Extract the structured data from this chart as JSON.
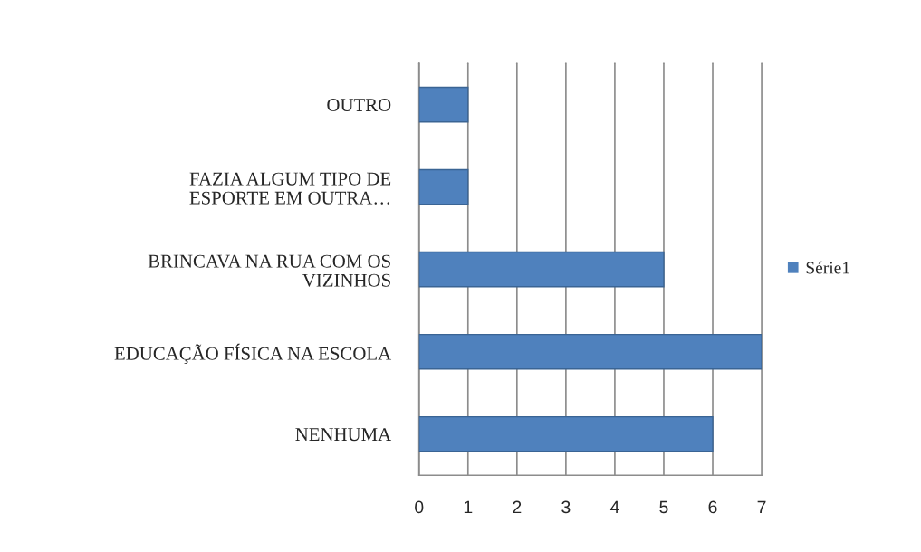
{
  "chart_data": {
    "type": "bar",
    "orientation": "horizontal",
    "categories": [
      "OUTRO",
      "FAZIA ALGUM TIPO DE\nESPORTE EM OUTRA…",
      "BRINCAVA NA RUA COM OS\nVIZINHOS",
      "EDUCAÇÃO FÍSICA NA ESCOLA",
      "NENHUMA"
    ],
    "series": [
      {
        "name": "Série1",
        "color": "#4f81bd",
        "values": [
          1,
          1,
          5,
          7,
          6
        ]
      }
    ],
    "xlim": [
      0,
      7
    ],
    "xticks": [
      0,
      1,
      2,
      3,
      4,
      5,
      6,
      7
    ],
    "grid": "x",
    "legend": "right"
  }
}
